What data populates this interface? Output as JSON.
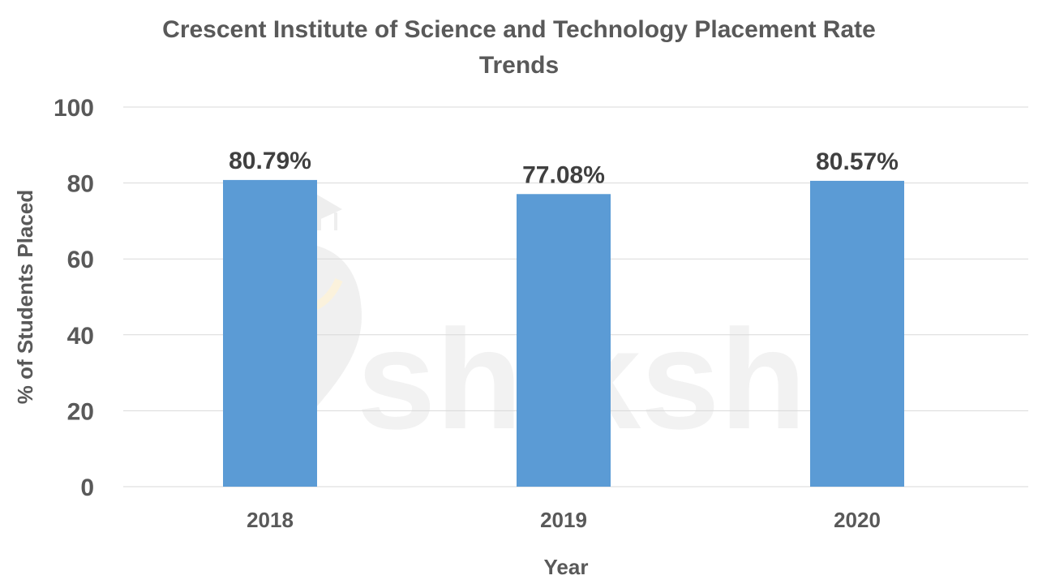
{
  "chart_data": {
    "type": "bar",
    "title_lines": [
      "Crescent Institute of Science and Technology Placement Rate",
      "Trends"
    ],
    "xlabel": "Year",
    "ylabel": "% of Students Placed",
    "categories": [
      "2018",
      "2019",
      "2020"
    ],
    "values": [
      80.79,
      77.08,
      80.57
    ],
    "data_labels": [
      "80.79%",
      "77.08%",
      "80.57%"
    ],
    "ylim": [
      0,
      100
    ],
    "yticks": [
      0,
      20,
      40,
      60,
      80,
      100
    ],
    "grid": true,
    "legend": "none",
    "colors": {
      "bar": "#5b9bd5",
      "grid": "#d9d9d9",
      "text": "#595959",
      "label": "#404040"
    }
  },
  "watermark": {
    "text": "shiksha",
    "icon": "shiksha-logo-icon"
  }
}
